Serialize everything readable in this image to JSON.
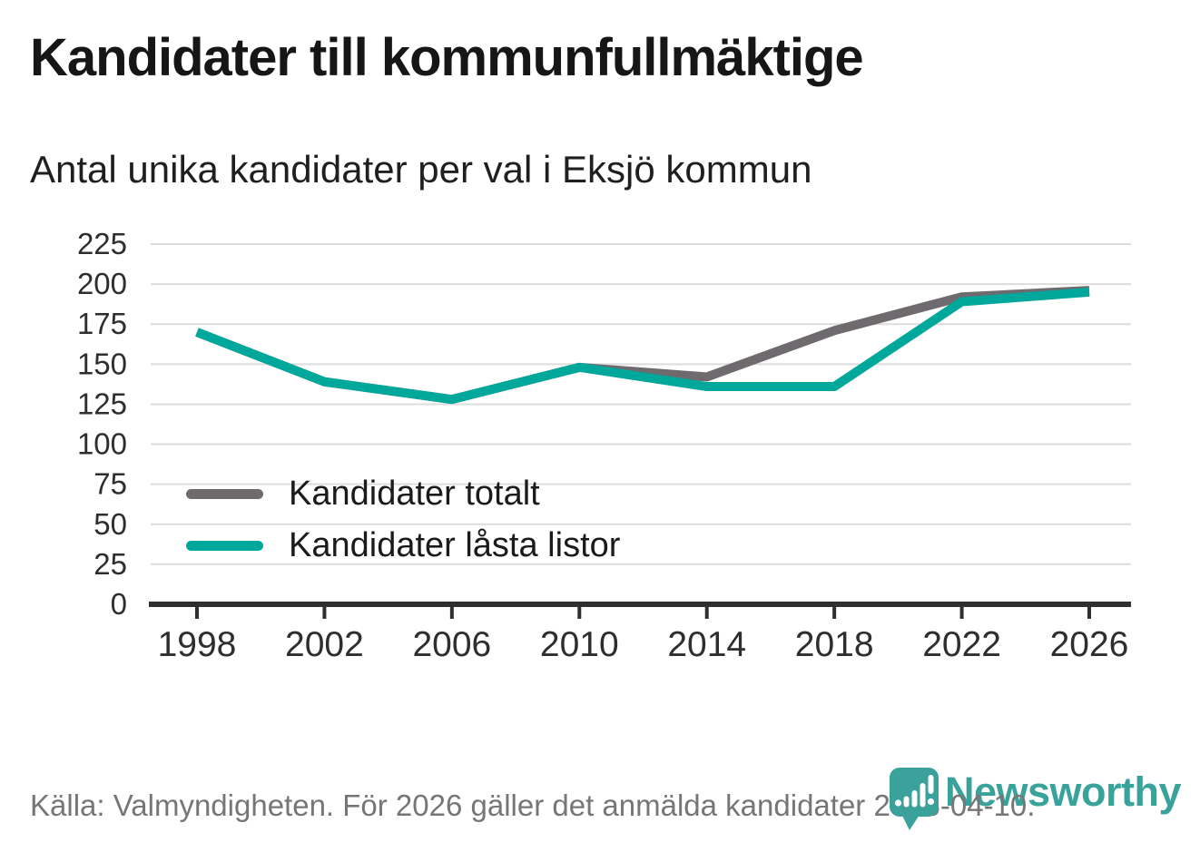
{
  "title": "Kandidater till kommunfullmäktige",
  "subtitle": "Antal unika kandidater per val i Eksjö kommun",
  "footer": {
    "source_note": "Källa: Valmyndigheten. För 2026 gäller det anmälda kandidater 2026-04-10."
  },
  "logo": {
    "brand": "Newsworthy",
    "icon": "bar-chart-pin-icon",
    "color": "#3aa29b"
  },
  "colors": {
    "series_total": "#6e6a6e",
    "series_locked": "#00a79b",
    "gridline": "#dcdcdc",
    "axis": "#2f2f2f",
    "title_text": "#161616",
    "footer_text": "#767676"
  },
  "chart_data": {
    "type": "line",
    "x": [
      1998,
      2002,
      2006,
      2010,
      2014,
      2018,
      2022,
      2026
    ],
    "series": [
      {
        "name": "Kandidater totalt",
        "color": "#6e6a6e",
        "values": [
          170,
          139,
          128,
          148,
          142,
          171,
          192,
          196
        ]
      },
      {
        "name": "Kandidater låsta listor",
        "color": "#00a79b",
        "values": [
          170,
          139,
          128,
          148,
          136,
          136,
          189,
          195
        ]
      }
    ],
    "ylim": [
      0,
      225
    ],
    "ytick_step": 25,
    "yticks": [
      0,
      25,
      50,
      75,
      100,
      125,
      150,
      175,
      200,
      225
    ],
    "grid": true,
    "legend_position": "inside-bottom-left",
    "xlabel": "",
    "ylabel": ""
  }
}
